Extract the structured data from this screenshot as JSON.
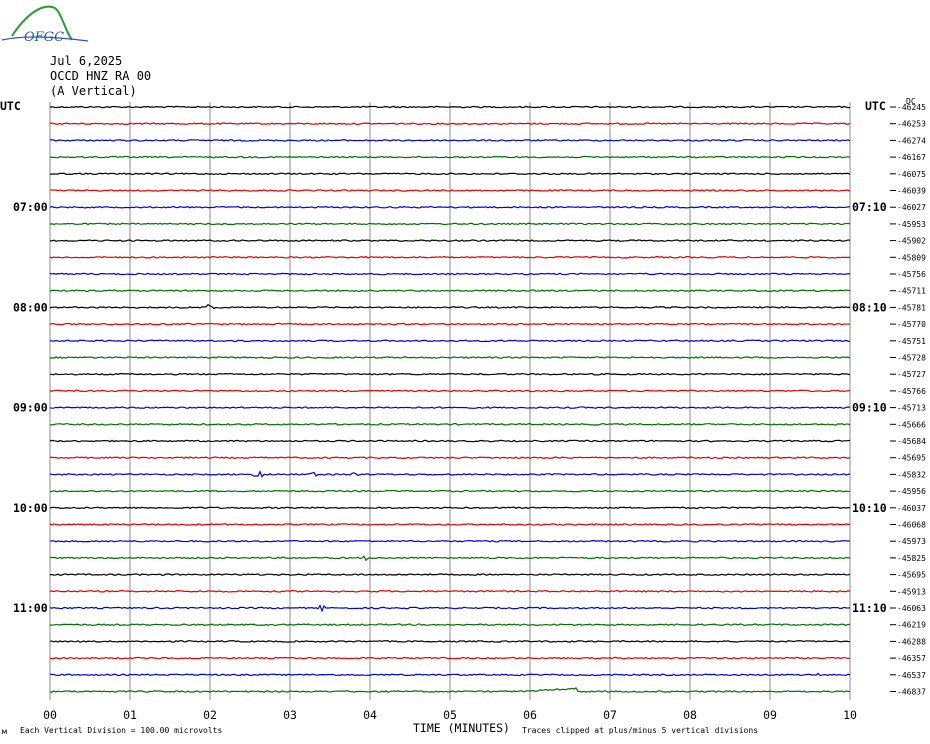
{
  "logo": {
    "text": "OFGC"
  },
  "header": {
    "date": "Jul 6,2025",
    "station": "OCCD HNZ RA 00",
    "component": "(A Vertical)"
  },
  "left_axis": {
    "label": "UTC",
    "ticks": [
      "07:00",
      "08:00",
      "09:00",
      "10:00",
      "11:00"
    ]
  },
  "right_axis": {
    "label": "UTC",
    "ticks": [
      "07:10",
      "08:10",
      "09:10",
      "10:10",
      "11:10"
    ],
    "dc_label": "DC"
  },
  "footer": {
    "corner": "м",
    "vertical_division": "Each Vertical Division = 100.00 microvolts",
    "x_title": "TIME (MINUTES)",
    "clip_note": "Traces clipped at plus/minus 5 vertical divisions"
  },
  "colors": {
    "black": "#000000",
    "red": "#e00000",
    "blue": "#0000dd",
    "green": "#007000",
    "grid": "#8c8c8c",
    "logo_green": "#2e9b3a",
    "logo_blue": "#2a5aa8"
  },
  "chart_data": {
    "type": "line",
    "title": "",
    "xlabel": "TIME (MINUTES)",
    "xlim": [
      0,
      10
    ],
    "x_ticks": [
      "00",
      "01",
      "02",
      "03",
      "04",
      "05",
      "06",
      "07",
      "08",
      "09",
      "10"
    ],
    "trace_color_cycle": [
      "black",
      "red",
      "blue",
      "green"
    ],
    "trace_offsets": [
      "-46245",
      "-46253",
      "-46274",
      "-46167",
      "-46075",
      "-46039",
      "-46027",
      "-45953",
      "-45902",
      "-45809",
      "-45756",
      "-45711",
      "-45781",
      "-45770",
      "-45751",
      "-45728",
      "-45727",
      "-45766",
      "-45713",
      "-45666",
      "-45684",
      "-45695",
      "-45832",
      "-45956",
      "-46037",
      "-46068",
      "-45973",
      "-45825",
      "-45695",
      "-45913",
      "-46063",
      "-46219",
      "-46288",
      "-46357",
      "-46537",
      "-46837"
    ],
    "events": [
      {
        "trace": 12,
        "minute": 2.0,
        "amplitude": 5
      },
      {
        "trace": 22,
        "minute": 2.6,
        "amplitude": 5
      },
      {
        "trace": 22,
        "minute": 3.3,
        "amplitude": 3
      },
      {
        "trace": 22,
        "minute": 3.8,
        "amplitude": 3
      },
      {
        "trace": 30,
        "minute": 3.4,
        "amplitude": 3
      },
      {
        "trace": 27,
        "minute": 3.95,
        "amplitude": 2
      },
      {
        "trace": 34,
        "minute": 9.6,
        "amplitude": 2
      }
    ],
    "step_shift": {
      "trace": 35,
      "minute": 6.6,
      "amount": -3
    }
  }
}
